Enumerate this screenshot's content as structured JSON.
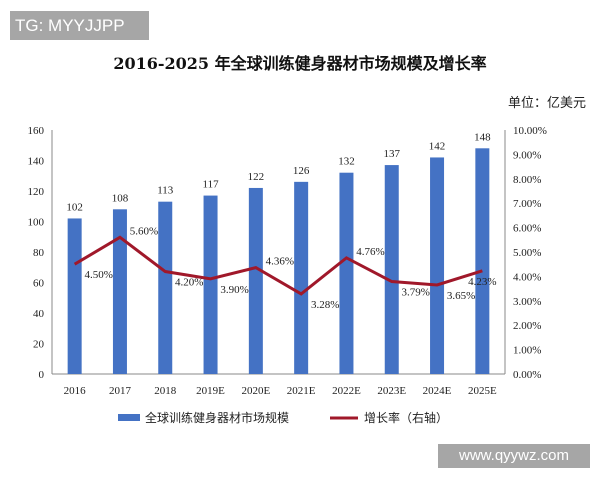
{
  "watermark_top": "TG: MYYJJPP",
  "watermark_bottom": "www.qyywz.com",
  "chart_data": {
    "type": "bar+line",
    "title": "2016-2025 年全球训练健身器材市场规模及增长率",
    "unit": "单位：亿美元",
    "categories": [
      "2016",
      "2017",
      "2018",
      "2019E",
      "2020E",
      "2021E",
      "2022E",
      "2023E",
      "2024E",
      "2025E"
    ],
    "series": [
      {
        "name": "全球训练健身器材市场规模",
        "type": "bar",
        "axis": "left",
        "color": "#4472c4",
        "values": [
          102,
          108,
          113,
          117,
          122,
          126,
          132,
          137,
          142,
          148
        ],
        "labels": [
          "102",
          "108",
          "113",
          "117",
          "122",
          "126",
          "132",
          "137",
          "142",
          "148"
        ]
      },
      {
        "name": "增长率（右轴）",
        "type": "line",
        "axis": "right",
        "color": "#a0182a",
        "values": [
          4.5,
          5.6,
          4.2,
          3.9,
          4.36,
          3.28,
          4.76,
          3.79,
          3.65,
          4.23
        ],
        "labels": [
          "4.50%",
          "5.60%",
          "4.20%",
          "3.90%",
          "4.36%",
          "3.28%",
          "4.76%",
          "3.79%",
          "3.65%",
          "4.23%"
        ]
      }
    ],
    "ylim": [
      0,
      160
    ],
    "yticks": [
      "0",
      "20",
      "40",
      "60",
      "80",
      "100",
      "120",
      "140",
      "160"
    ],
    "y2lim": [
      0,
      10
    ],
    "y2ticks": [
      "0.00%",
      "1.00%",
      "2.00%",
      "3.00%",
      "4.00%",
      "5.00%",
      "6.00%",
      "7.00%",
      "8.00%",
      "9.00%",
      "10.00%"
    ],
    "legend": "bottom",
    "grid": false
  }
}
